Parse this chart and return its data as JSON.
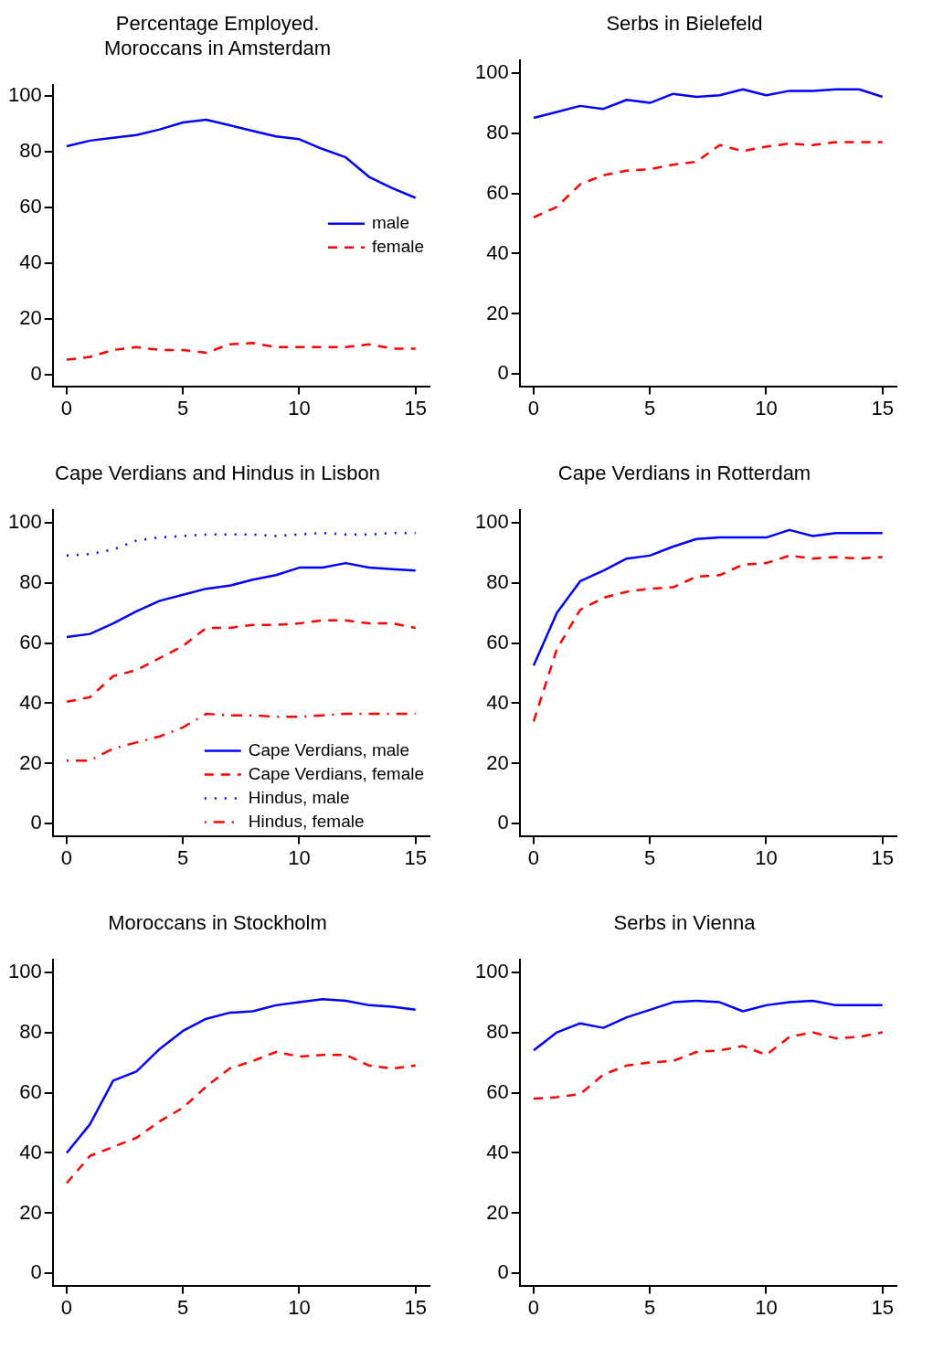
{
  "chart_data": [
    {
      "type": "line",
      "title": "Percentage Employed.\nMoroccans in Amsterdam",
      "x": [
        0,
        1,
        2,
        3,
        4,
        5,
        6,
        7,
        8,
        9,
        10,
        11,
        12,
        13,
        14,
        15
      ],
      "xlim": [
        -0.6,
        15.6
      ],
      "xticks": [
        0,
        5,
        10,
        15
      ],
      "ylim": [
        -4,
        104
      ],
      "yticks": [
        0,
        20,
        40,
        60,
        80,
        100
      ],
      "grid": false,
      "legend": "right",
      "series": [
        {
          "name": "male",
          "color": "#0000ff",
          "line_style": "solid",
          "values": [
            82,
            84,
            85,
            86,
            88,
            90.5,
            91.5,
            89.5,
            87.5,
            85.5,
            84.5,
            81,
            78,
            71,
            67,
            63.5
          ]
        },
        {
          "name": "female",
          "color": "#ff0000",
          "line_style": "dashed",
          "values": [
            5.5,
            6.5,
            9,
            10,
            9,
            9,
            8,
            11,
            11.5,
            10,
            10,
            10,
            10,
            11,
            9.5,
            9.5
          ]
        }
      ]
    },
    {
      "type": "line",
      "title": "Serbs in Bielefeld",
      "x": [
        0,
        1,
        2,
        3,
        4,
        5,
        6,
        7,
        8,
        9,
        10,
        11,
        12,
        13,
        14,
        15
      ],
      "xlim": [
        -0.6,
        15.6
      ],
      "xticks": [
        0,
        5,
        10,
        15
      ],
      "ylim": [
        -4,
        104
      ],
      "yticks": [
        0,
        20,
        40,
        60,
        80,
        100
      ],
      "grid": false,
      "series": [
        {
          "color": "#0000ff",
          "line_style": "solid",
          "values": [
            85,
            87,
            89,
            88,
            91,
            90,
            93,
            92,
            92.5,
            94.5,
            92.5,
            94,
            94,
            94.5,
            94.5,
            92
          ]
        },
        {
          "color": "#ff0000",
          "line_style": "dashed",
          "values": [
            52,
            55.5,
            63,
            66,
            67.5,
            68,
            69.5,
            70.5,
            76,
            74,
            75.5,
            76.5,
            76,
            77,
            77,
            77
          ]
        }
      ]
    },
    {
      "type": "line",
      "title": "Cape Verdians and Hindus in Lisbon",
      "x": [
        0,
        1,
        2,
        3,
        4,
        5,
        6,
        7,
        8,
        9,
        10,
        11,
        12,
        13,
        14,
        15
      ],
      "xlim": [
        -0.6,
        15.6
      ],
      "xticks": [
        0,
        5,
        10,
        15
      ],
      "ylim": [
        -4,
        104
      ],
      "yticks": [
        0,
        20,
        40,
        60,
        80,
        100
      ],
      "grid": false,
      "legend": "bottom right",
      "series": [
        {
          "name": "Cape Verdians, male",
          "color": "#0000ff",
          "line_style": "solid",
          "values": [
            62,
            63,
            66.5,
            70.5,
            74,
            76,
            78,
            79,
            81,
            82.5,
            85,
            85,
            86.5,
            85,
            84.5,
            84
          ]
        },
        {
          "name": "Cape Verdians, female",
          "color": "#ff0000",
          "line_style": "dashed",
          "values": [
            40.5,
            42,
            49,
            51,
            55,
            59,
            65,
            65,
            66,
            66,
            66.5,
            67.5,
            67.5,
            66.5,
            66.5,
            65
          ]
        },
        {
          "name": "Hindus, male",
          "color": "#0000ff",
          "line_style": "dotted",
          "values": [
            89,
            89.5,
            91,
            94,
            95,
            95.5,
            96,
            96,
            96,
            95.5,
            96,
            96.5,
            96,
            96,
            96.5,
            96.5
          ]
        },
        {
          "name": "Hindus, female",
          "color": "#ff0000",
          "line_style": "dashdot",
          "values": [
            21,
            21,
            25,
            27,
            29,
            32,
            36.5,
            36,
            36,
            35.5,
            35.5,
            36,
            36.5,
            36.5,
            36.5,
            36.5
          ]
        }
      ]
    },
    {
      "type": "line",
      "title": "Cape Verdians in Rotterdam",
      "x": [
        0,
        1,
        2,
        3,
        4,
        5,
        6,
        7,
        8,
        9,
        10,
        11,
        12,
        13,
        14,
        15
      ],
      "xlim": [
        -0.6,
        15.6
      ],
      "xticks": [
        0,
        5,
        10,
        15
      ],
      "ylim": [
        -4,
        104
      ],
      "yticks": [
        0,
        20,
        40,
        60,
        80,
        100
      ],
      "grid": false,
      "series": [
        {
          "color": "#0000ff",
          "line_style": "solid",
          "values": [
            52.5,
            70,
            80.5,
            84,
            88,
            89,
            92,
            94.5,
            95,
            95,
            95,
            97.5,
            95.5,
            96.5,
            96.5,
            96.5
          ]
        },
        {
          "color": "#ff0000",
          "line_style": "dashed",
          "values": [
            34,
            58,
            71,
            75,
            77,
            78,
            78.5,
            82,
            82.5,
            86,
            86.5,
            89,
            88,
            88.5,
            88,
            88.5
          ]
        }
      ]
    },
    {
      "type": "line",
      "title": "Moroccans in Stockholm",
      "x": [
        0,
        1,
        2,
        3,
        4,
        5,
        6,
        7,
        8,
        9,
        10,
        11,
        12,
        13,
        14,
        15
      ],
      "xlim": [
        -0.6,
        15.6
      ],
      "xticks": [
        0,
        5,
        10,
        15
      ],
      "ylim": [
        -4,
        104
      ],
      "yticks": [
        0,
        20,
        40,
        60,
        80,
        100
      ],
      "grid": false,
      "series": [
        {
          "color": "#0000ff",
          "line_style": "solid",
          "values": [
            40,
            49.5,
            64,
            67,
            74.5,
            80.5,
            84.5,
            86.5,
            87,
            89,
            90,
            91,
            90.5,
            89,
            88.5,
            87.5
          ]
        },
        {
          "color": "#ff0000",
          "line_style": "dashed",
          "values": [
            30,
            39,
            42,
            45,
            50.5,
            55,
            62,
            68,
            70.5,
            73.5,
            72,
            72.5,
            72.5,
            69,
            68,
            69
          ]
        }
      ]
    },
    {
      "type": "line",
      "title": "Serbs in Vienna",
      "x": [
        0,
        1,
        2,
        3,
        4,
        5,
        6,
        7,
        8,
        9,
        10,
        11,
        12,
        13,
        14,
        15
      ],
      "xlim": [
        -0.6,
        15.6
      ],
      "xticks": [
        0,
        5,
        10,
        15
      ],
      "ylim": [
        -4,
        104
      ],
      "yticks": [
        0,
        20,
        40,
        60,
        80,
        100
      ],
      "grid": false,
      "series": [
        {
          "color": "#0000ff",
          "line_style": "solid",
          "values": [
            74,
            80,
            83,
            81.5,
            85,
            87.5,
            90,
            90.5,
            90,
            87,
            89,
            90,
            90.5,
            89,
            89,
            89
          ]
        },
        {
          "color": "#ff0000",
          "line_style": "dashed",
          "values": [
            58,
            58.5,
            59.5,
            66,
            69,
            70,
            70.5,
            73.5,
            74,
            75.5,
            72.5,
            78.5,
            80,
            78,
            78.5,
            80
          ]
        }
      ]
    }
  ]
}
